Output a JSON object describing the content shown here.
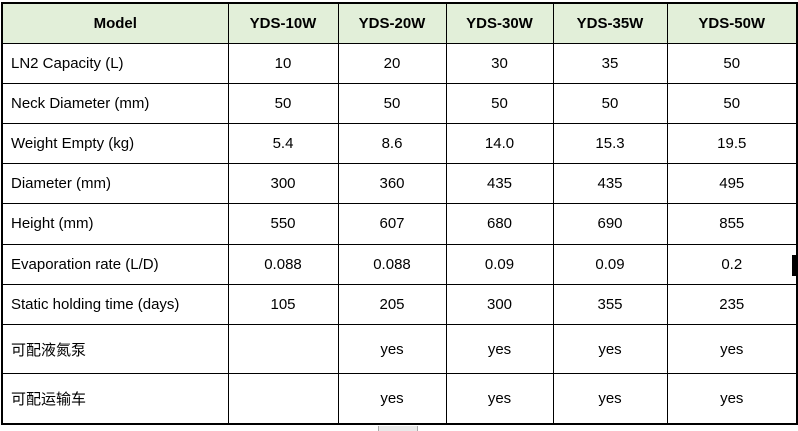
{
  "table": {
    "columns": [
      "Model",
      "YDS-10W",
      "YDS-20W",
      "YDS-30W",
      "YDS-35W",
      "YDS-50W"
    ],
    "rows": [
      {
        "label": "LN2 Capacity (L)",
        "values": [
          "10",
          "20",
          "30",
          "35",
          "50"
        ]
      },
      {
        "label": "Neck Diameter (mm)",
        "values": [
          "50",
          "50",
          "50",
          "50",
          "50"
        ]
      },
      {
        "label": "Weight Empty (kg)",
        "values": [
          "5.4",
          "8.6",
          "14.0",
          "15.3",
          "19.5"
        ]
      },
      {
        "label": "Diameter (mm)",
        "values": [
          "300",
          "360",
          "435",
          "435",
          "495"
        ]
      },
      {
        "label": "Height (mm)",
        "values": [
          "550",
          "607",
          "680",
          "690",
          "855"
        ]
      },
      {
        "label": "Evaporation rate (L/D)",
        "values": [
          "0.088",
          "0.088",
          "0.09",
          "0.09",
          "0.2"
        ]
      },
      {
        "label": "Static holding time (days)",
        "values": [
          "105",
          "205",
          "300",
          "355",
          "235"
        ]
      },
      {
        "label": "可配液氮泵",
        "values": [
          "",
          "yes",
          "yes",
          "yes",
          "yes"
        ]
      },
      {
        "label": "可配运输车",
        "values": [
          "",
          "yes",
          "yes",
          "yes",
          "yes"
        ]
      }
    ],
    "colors": {
      "header_bg": "#E2EFD9",
      "border": "#000000",
      "text": "#000000"
    }
  }
}
